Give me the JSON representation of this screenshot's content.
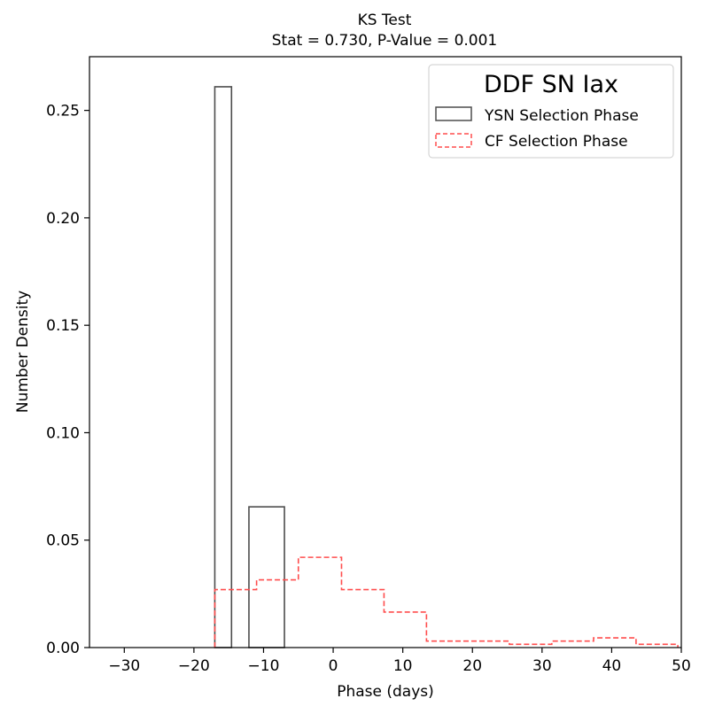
{
  "chart_data": {
    "type": "histogram",
    "title": "KS Test",
    "subtitle": "Stat = 0.730, P-Value = 0.001",
    "xlabel": "Phase (days)",
    "ylabel": "Number Density",
    "xlim": [
      -35,
      50
    ],
    "ylim": [
      0,
      0.275
    ],
    "xticks": [
      -30,
      -20,
      -10,
      0,
      10,
      20,
      30,
      40,
      50
    ],
    "xtick_labels": [
      "−30",
      "−20",
      "−10",
      "0",
      "10",
      "20",
      "30",
      "40",
      "50"
    ],
    "yticks": [
      0.0,
      0.05,
      0.1,
      0.15,
      0.2,
      0.25
    ],
    "ytick_labels": [
      "0.00",
      "0.05",
      "0.10",
      "0.15",
      "0.20",
      "0.25"
    ],
    "grid": false,
    "legend": {
      "title": "DDF SN Iax",
      "placement": "top-right",
      "entries": [
        "YSN Selection Phase",
        "CF Selection Phase"
      ]
    },
    "series": [
      {
        "name": "YSN Selection Phase",
        "style": "step-filled-outline",
        "color": "#4d4d4d",
        "edges": [
          -17.0,
          -14.6,
          -12.1,
          -7.0
        ],
        "bars": [
          {
            "x0": -17.0,
            "x1": -14.6,
            "value": 0.261
          },
          {
            "x0": -12.1,
            "x1": -7.0,
            "value": 0.0655
          }
        ]
      },
      {
        "name": "CF Selection Phase",
        "style": "step-dashed",
        "color": "#ff4d4d",
        "edges": [
          -17.0,
          -11.0,
          -5.0,
          1.2,
          7.3,
          13.4,
          19.4,
          25.3,
          31.4,
          37.4,
          43.5,
          49.5
        ],
        "values": [
          0.027,
          0.0315,
          0.042,
          0.027,
          0.0165,
          0.003,
          0.003,
          0.0015,
          0.003,
          0.0045,
          0.0015
        ]
      }
    ]
  }
}
